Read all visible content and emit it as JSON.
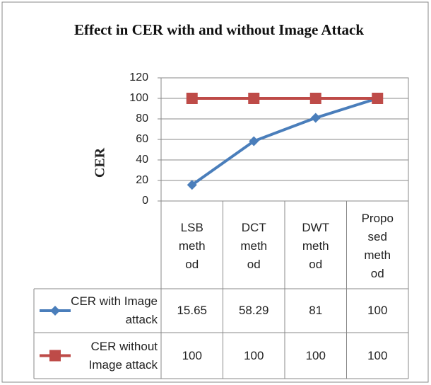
{
  "chart_data": {
    "type": "line",
    "title": "Effect in CER with and without Image Attack",
    "y_label": "CER",
    "categories": [
      "LSB method",
      "DCT method",
      "DWT method",
      "Proposed method"
    ],
    "series": [
      {
        "name": "CER with Image attack",
        "color": "#4a7ebb",
        "marker": "diamond",
        "values": [
          15.65,
          58.29,
          81,
          100
        ]
      },
      {
        "name": "CER without Image attack",
        "color": "#be4b48",
        "marker": "square",
        "values": [
          100,
          100,
          100,
          100
        ]
      }
    ],
    "ylim": [
      0,
      120
    ],
    "yticks": [
      0,
      20,
      40,
      60,
      80,
      100,
      120
    ],
    "grid": true,
    "data_table": true
  }
}
